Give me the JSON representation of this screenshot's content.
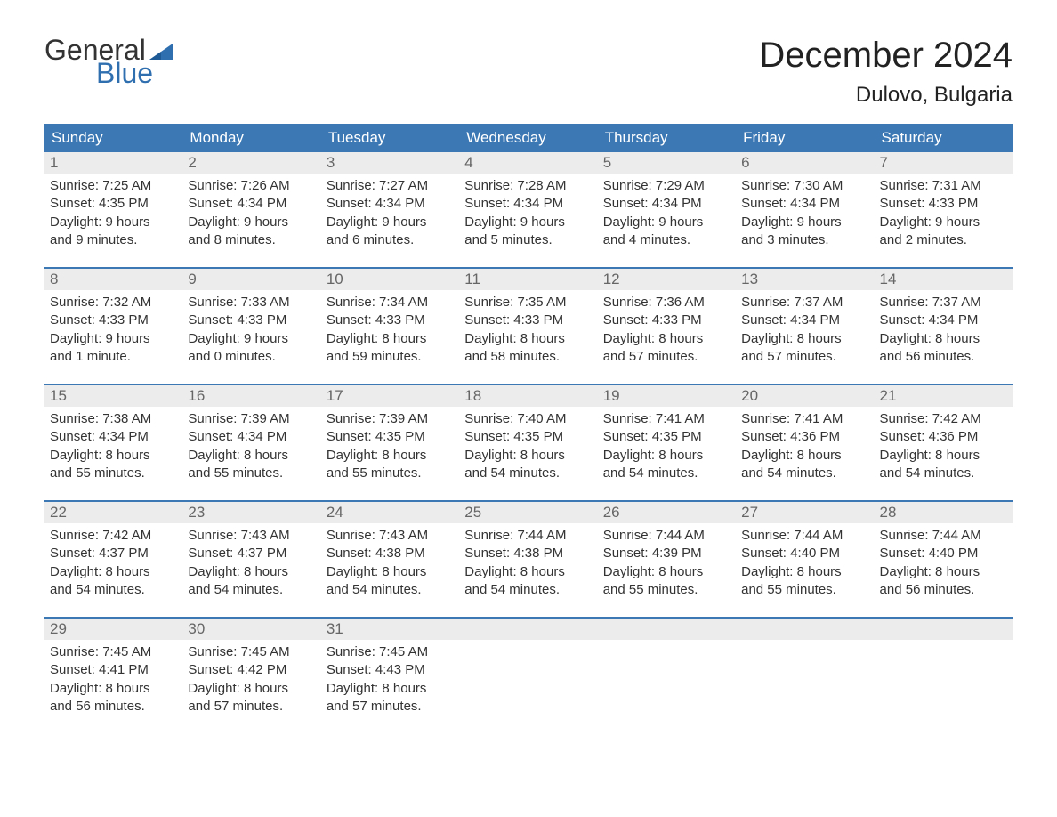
{
  "logo": {
    "word1": "General",
    "word2": "Blue",
    "flag_color": "#2f6fb0",
    "text_color": "#333333"
  },
  "title": "December 2024",
  "location": "Dulovo, Bulgaria",
  "colors": {
    "header_bg": "#3c78b4",
    "header_text": "#ffffff",
    "daynum_bg": "#ececec",
    "daynum_text": "#666666",
    "body_text": "#333333",
    "week_divider": "#3c78b4",
    "page_bg": "#ffffff"
  },
  "typography": {
    "title_size_pt": 30,
    "location_size_pt": 18,
    "weekday_size_pt": 13,
    "daynum_size_pt": 13,
    "body_size_pt": 11,
    "font_family": "Arial"
  },
  "weekdays": [
    "Sunday",
    "Monday",
    "Tuesday",
    "Wednesday",
    "Thursday",
    "Friday",
    "Saturday"
  ],
  "weeks": [
    [
      {
        "n": "1",
        "sunrise": "Sunrise: 7:25 AM",
        "sunset": "Sunset: 4:35 PM",
        "d1": "Daylight: 9 hours",
        "d2": "and 9 minutes."
      },
      {
        "n": "2",
        "sunrise": "Sunrise: 7:26 AM",
        "sunset": "Sunset: 4:34 PM",
        "d1": "Daylight: 9 hours",
        "d2": "and 8 minutes."
      },
      {
        "n": "3",
        "sunrise": "Sunrise: 7:27 AM",
        "sunset": "Sunset: 4:34 PM",
        "d1": "Daylight: 9 hours",
        "d2": "and 6 minutes."
      },
      {
        "n": "4",
        "sunrise": "Sunrise: 7:28 AM",
        "sunset": "Sunset: 4:34 PM",
        "d1": "Daylight: 9 hours",
        "d2": "and 5 minutes."
      },
      {
        "n": "5",
        "sunrise": "Sunrise: 7:29 AM",
        "sunset": "Sunset: 4:34 PM",
        "d1": "Daylight: 9 hours",
        "d2": "and 4 minutes."
      },
      {
        "n": "6",
        "sunrise": "Sunrise: 7:30 AM",
        "sunset": "Sunset: 4:34 PM",
        "d1": "Daylight: 9 hours",
        "d2": "and 3 minutes."
      },
      {
        "n": "7",
        "sunrise": "Sunrise: 7:31 AM",
        "sunset": "Sunset: 4:33 PM",
        "d1": "Daylight: 9 hours",
        "d2": "and 2 minutes."
      }
    ],
    [
      {
        "n": "8",
        "sunrise": "Sunrise: 7:32 AM",
        "sunset": "Sunset: 4:33 PM",
        "d1": "Daylight: 9 hours",
        "d2": "and 1 minute."
      },
      {
        "n": "9",
        "sunrise": "Sunrise: 7:33 AM",
        "sunset": "Sunset: 4:33 PM",
        "d1": "Daylight: 9 hours",
        "d2": "and 0 minutes."
      },
      {
        "n": "10",
        "sunrise": "Sunrise: 7:34 AM",
        "sunset": "Sunset: 4:33 PM",
        "d1": "Daylight: 8 hours",
        "d2": "and 59 minutes."
      },
      {
        "n": "11",
        "sunrise": "Sunrise: 7:35 AM",
        "sunset": "Sunset: 4:33 PM",
        "d1": "Daylight: 8 hours",
        "d2": "and 58 minutes."
      },
      {
        "n": "12",
        "sunrise": "Sunrise: 7:36 AM",
        "sunset": "Sunset: 4:33 PM",
        "d1": "Daylight: 8 hours",
        "d2": "and 57 minutes."
      },
      {
        "n": "13",
        "sunrise": "Sunrise: 7:37 AM",
        "sunset": "Sunset: 4:34 PM",
        "d1": "Daylight: 8 hours",
        "d2": "and 57 minutes."
      },
      {
        "n": "14",
        "sunrise": "Sunrise: 7:37 AM",
        "sunset": "Sunset: 4:34 PM",
        "d1": "Daylight: 8 hours",
        "d2": "and 56 minutes."
      }
    ],
    [
      {
        "n": "15",
        "sunrise": "Sunrise: 7:38 AM",
        "sunset": "Sunset: 4:34 PM",
        "d1": "Daylight: 8 hours",
        "d2": "and 55 minutes."
      },
      {
        "n": "16",
        "sunrise": "Sunrise: 7:39 AM",
        "sunset": "Sunset: 4:34 PM",
        "d1": "Daylight: 8 hours",
        "d2": "and 55 minutes."
      },
      {
        "n": "17",
        "sunrise": "Sunrise: 7:39 AM",
        "sunset": "Sunset: 4:35 PM",
        "d1": "Daylight: 8 hours",
        "d2": "and 55 minutes."
      },
      {
        "n": "18",
        "sunrise": "Sunrise: 7:40 AM",
        "sunset": "Sunset: 4:35 PM",
        "d1": "Daylight: 8 hours",
        "d2": "and 54 minutes."
      },
      {
        "n": "19",
        "sunrise": "Sunrise: 7:41 AM",
        "sunset": "Sunset: 4:35 PM",
        "d1": "Daylight: 8 hours",
        "d2": "and 54 minutes."
      },
      {
        "n": "20",
        "sunrise": "Sunrise: 7:41 AM",
        "sunset": "Sunset: 4:36 PM",
        "d1": "Daylight: 8 hours",
        "d2": "and 54 minutes."
      },
      {
        "n": "21",
        "sunrise": "Sunrise: 7:42 AM",
        "sunset": "Sunset: 4:36 PM",
        "d1": "Daylight: 8 hours",
        "d2": "and 54 minutes."
      }
    ],
    [
      {
        "n": "22",
        "sunrise": "Sunrise: 7:42 AM",
        "sunset": "Sunset: 4:37 PM",
        "d1": "Daylight: 8 hours",
        "d2": "and 54 minutes."
      },
      {
        "n": "23",
        "sunrise": "Sunrise: 7:43 AM",
        "sunset": "Sunset: 4:37 PM",
        "d1": "Daylight: 8 hours",
        "d2": "and 54 minutes."
      },
      {
        "n": "24",
        "sunrise": "Sunrise: 7:43 AM",
        "sunset": "Sunset: 4:38 PM",
        "d1": "Daylight: 8 hours",
        "d2": "and 54 minutes."
      },
      {
        "n": "25",
        "sunrise": "Sunrise: 7:44 AM",
        "sunset": "Sunset: 4:38 PM",
        "d1": "Daylight: 8 hours",
        "d2": "and 54 minutes."
      },
      {
        "n": "26",
        "sunrise": "Sunrise: 7:44 AM",
        "sunset": "Sunset: 4:39 PM",
        "d1": "Daylight: 8 hours",
        "d2": "and 55 minutes."
      },
      {
        "n": "27",
        "sunrise": "Sunrise: 7:44 AM",
        "sunset": "Sunset: 4:40 PM",
        "d1": "Daylight: 8 hours",
        "d2": "and 55 minutes."
      },
      {
        "n": "28",
        "sunrise": "Sunrise: 7:44 AM",
        "sunset": "Sunset: 4:40 PM",
        "d1": "Daylight: 8 hours",
        "d2": "and 56 minutes."
      }
    ],
    [
      {
        "n": "29",
        "sunrise": "Sunrise: 7:45 AM",
        "sunset": "Sunset: 4:41 PM",
        "d1": "Daylight: 8 hours",
        "d2": "and 56 minutes."
      },
      {
        "n": "30",
        "sunrise": "Sunrise: 7:45 AM",
        "sunset": "Sunset: 4:42 PM",
        "d1": "Daylight: 8 hours",
        "d2": "and 57 minutes."
      },
      {
        "n": "31",
        "sunrise": "Sunrise: 7:45 AM",
        "sunset": "Sunset: 4:43 PM",
        "d1": "Daylight: 8 hours",
        "d2": "and 57 minutes."
      },
      null,
      null,
      null,
      null
    ]
  ]
}
